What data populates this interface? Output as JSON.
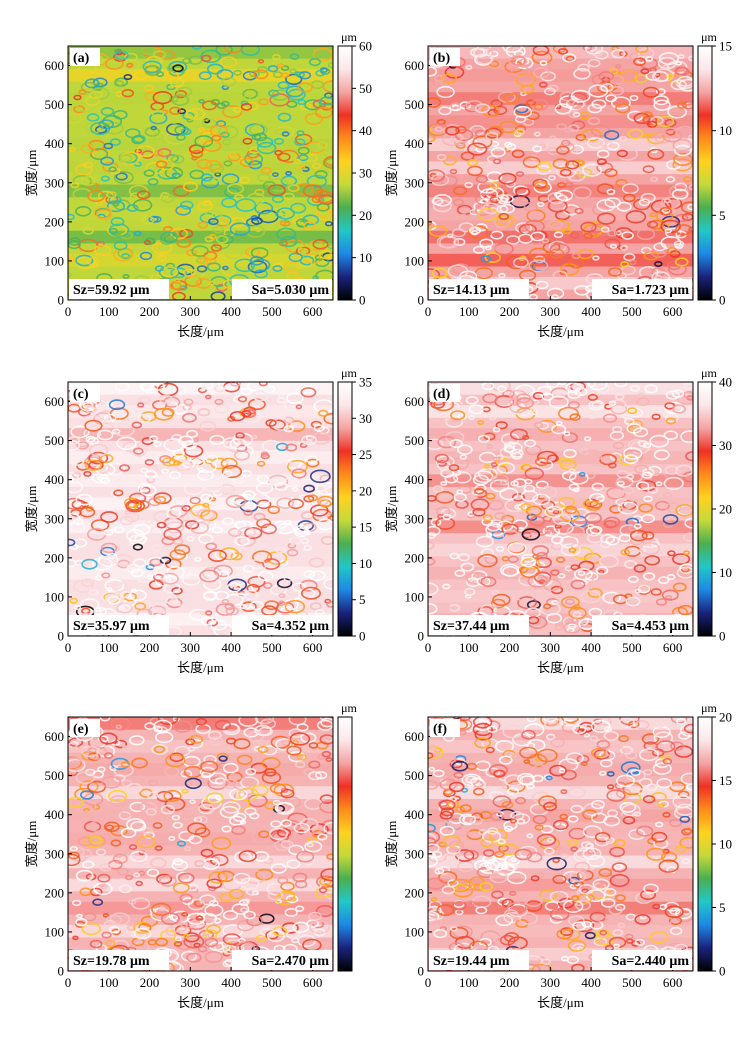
{
  "chart_data": [
    {
      "type": "heatmap",
      "panel": "(a)",
      "xlabel": "长度/μm",
      "ylabel": "宽度/μm",
      "xlim": [
        0,
        650
      ],
      "ylim": [
        0,
        650
      ],
      "xticks": [
        "0",
        "100",
        "200",
        "300",
        "400",
        "500",
        "600"
      ],
      "yticks": [
        "0",
        "100",
        "200",
        "300",
        "400",
        "500",
        "600"
      ],
      "colorbar": {
        "unit": "μm",
        "range": [
          0,
          60
        ],
        "ticks": [
          "0",
          "10",
          "20",
          "30",
          "40",
          "50",
          "60"
        ]
      },
      "dominant_level": 0.45,
      "sz": "Sz=59.92 μm",
      "sa": "Sa=5.030 μm"
    },
    {
      "type": "heatmap",
      "panel": "(b)",
      "xlabel": "长度/μm",
      "ylabel": "宽度/μm",
      "xlim": [
        0,
        650
      ],
      "ylim": [
        0,
        650
      ],
      "xticks": [
        "0",
        "100",
        "200",
        "300",
        "400",
        "500",
        "600"
      ],
      "yticks": [
        "0",
        "100",
        "200",
        "300",
        "400",
        "500",
        "600"
      ],
      "colorbar": {
        "unit": "μm",
        "range": [
          0,
          15
        ],
        "ticks": [
          "0",
          "5",
          "10",
          "15"
        ]
      },
      "dominant_level": 0.82,
      "sz": "Sz=14.13 μm",
      "sa": "Sa=1.723 μm"
    },
    {
      "type": "heatmap",
      "panel": "(c)",
      "xlabel": "长度/μm",
      "ylabel": "宽度/μm",
      "xlim": [
        0,
        650
      ],
      "ylim": [
        0,
        650
      ],
      "xticks": [
        "0",
        "100",
        "200",
        "300",
        "400",
        "500",
        "600"
      ],
      "yticks": [
        "0",
        "100",
        "200",
        "300",
        "400",
        "500",
        "600"
      ],
      "colorbar": {
        "unit": "μm",
        "range": [
          0,
          35
        ],
        "ticks": [
          "0",
          "5",
          "10",
          "15",
          "20",
          "25",
          "30",
          "35"
        ]
      },
      "dominant_level": 0.9,
      "sz": "Sz=35.97 μm",
      "sa": "Sa=4.352 μm"
    },
    {
      "type": "heatmap",
      "panel": "(d)",
      "xlabel": "长度/μm",
      "ylabel": "宽度/μm",
      "xlim": [
        0,
        650
      ],
      "ylim": [
        0,
        650
      ],
      "xticks": [
        "0",
        "100",
        "200",
        "300",
        "400",
        "500",
        "600"
      ],
      "yticks": [
        "0",
        "100",
        "200",
        "300",
        "400",
        "500",
        "600"
      ],
      "colorbar": {
        "unit": "μm",
        "range": [
          0,
          40
        ],
        "ticks": [
          "0",
          "10",
          "20",
          "30",
          "40"
        ]
      },
      "dominant_level": 0.86,
      "sz": "Sz=37.44 μm",
      "sa": "Sa=4.453 μm"
    },
    {
      "type": "heatmap",
      "panel": "(e)",
      "xlabel": "长度/μm",
      "ylabel": "宽度/μm",
      "xlim": [
        0,
        650
      ],
      "ylim": [
        0,
        650
      ],
      "xticks": [
        "0",
        "100",
        "200",
        "300",
        "400",
        "500",
        "600"
      ],
      "yticks": [
        "0",
        "100",
        "200",
        "300",
        "400",
        "500",
        "600"
      ],
      "colorbar": {
        "unit": "μm",
        "range": [
          0,
          20
        ],
        "ticks": []
      },
      "dominant_level": 0.84,
      "sz": "Sz=19.78 μm",
      "sa": "Sa=2.470 μm"
    },
    {
      "type": "heatmap",
      "panel": "(f)",
      "xlabel": "长度/μm",
      "ylabel": "宽度/μm",
      "xlim": [
        0,
        650
      ],
      "ylim": [
        0,
        650
      ],
      "xticks": [
        "0",
        "100",
        "200",
        "300",
        "400",
        "500",
        "600"
      ],
      "yticks": [
        "0",
        "100",
        "200",
        "300",
        "400",
        "500",
        "600"
      ],
      "colorbar": {
        "unit": "μm",
        "range": [
          0,
          20
        ],
        "ticks": [
          "0",
          "5",
          "10",
          "15",
          "20"
        ]
      },
      "dominant_level": 0.84,
      "sz": "Sz=19.44 μm",
      "sa": "Sa=2.440 μm"
    }
  ],
  "colormap": [
    "#000000",
    "#1a237e",
    "#1e88e5",
    "#22c7c7",
    "#4caf50",
    "#c6d93a",
    "#ffd21f",
    "#ff8c1a",
    "#ee3124",
    "#f5a3a3",
    "#fbe7ea",
    "#ffffff"
  ]
}
